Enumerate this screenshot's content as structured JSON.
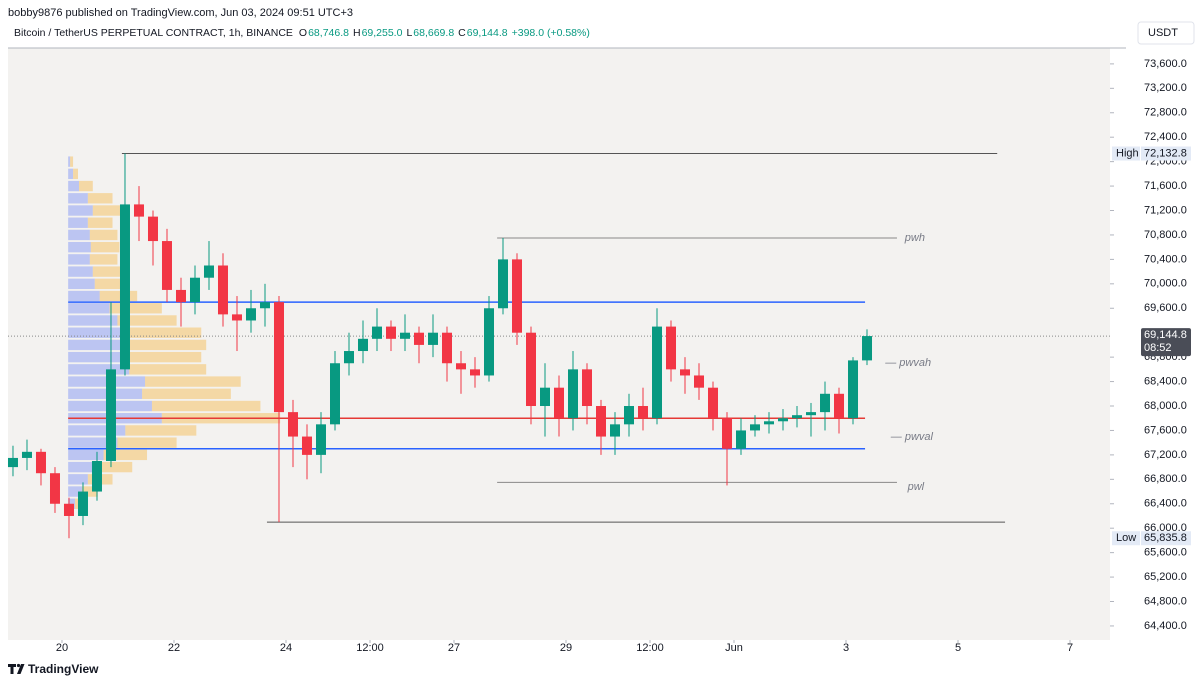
{
  "header": {
    "publisher": "bobby9876 published on TradingView.com, Jun 03, 2024 09:51 UTC+3"
  },
  "footer": {
    "brand": "TradingView"
  },
  "chart_data": {
    "type": "candlestick",
    "title": "Bitcoin / TetherUS PERPETUAL CONTRACT, 1h, BINANCE",
    "legend_ohlc": [
      {
        "key": "O",
        "value": "68,746.8"
      },
      {
        "key": "H",
        "value": "69,255.0"
      },
      {
        "key": "L",
        "value": "68,669.8"
      },
      {
        "key": "C",
        "value": "69,144.8"
      }
    ],
    "change": "+398.0 (+0.58%)",
    "currency": "USDT",
    "up_color": "#089981",
    "down_color": "#f23645",
    "x": [
      -0.875,
      -0.625,
      -0.375,
      -0.125,
      0.125,
      0.375,
      0.625,
      0.875,
      1.125,
      1.375,
      1.625,
      1.875,
      2.125,
      2.375,
      2.625,
      2.875,
      3.125,
      3.375,
      3.625,
      3.875,
      4.125,
      4.375,
      4.625,
      4.875,
      5.125,
      5.375,
      5.625,
      5.875,
      6.125,
      6.375,
      6.625,
      6.875,
      7.125,
      7.375,
      7.625,
      7.875,
      8.125,
      8.375,
      8.625,
      8.875,
      9.125,
      9.375,
      9.625,
      9.875,
      10.125,
      10.375,
      10.625,
      10.875,
      11.125,
      11.375,
      11.625,
      11.875,
      12.125,
      12.375,
      12.625,
      12.875,
      13.125,
      13.375,
      13.625,
      13.875,
      14.125,
      14.375
    ],
    "open": [
      67000,
      67150,
      67250,
      66900,
      66400,
      66200,
      66600,
      67100,
      68600,
      71300,
      71100,
      70700,
      69900,
      69700,
      70100,
      70300,
      69500,
      69400,
      69600,
      69700,
      67900,
      67500,
      67200,
      67700,
      68700,
      68900,
      69100,
      69300,
      69100,
      69200,
      69000,
      69200,
      68700,
      68600,
      68500,
      69600,
      70400,
      69200,
      68000,
      68300,
      67800,
      68600,
      68000,
      67500,
      67700,
      68000,
      67800,
      69300,
      68600,
      68500,
      68300,
      67800,
      67300,
      67600,
      67700,
      67750,
      67800,
      67850,
      67900,
      68200,
      67800,
      68746.8
    ],
    "high": [
      67350,
      67450,
      67300,
      67000,
      66500,
      66750,
      67250,
      69700,
      72132.8,
      71600,
      71200,
      70900,
      70100,
      70300,
      70700,
      70500,
      69800,
      69900,
      70000,
      69800,
      68100,
      67700,
      67900,
      68900,
      69200,
      69400,
      69600,
      69400,
      69500,
      69300,
      69500,
      69300,
      68900,
      68800,
      69800,
      70750,
      70500,
      69300,
      68700,
      68500,
      68900,
      68700,
      68100,
      67900,
      68200,
      68300,
      69600,
      69400,
      68800,
      68700,
      68400,
      67900,
      67800,
      67850,
      67900,
      67950,
      68000,
      68050,
      68400,
      68300,
      68800,
      69255.0
    ],
    "low": [
      66850,
      66950,
      66700,
      66250,
      65835.8,
      66050,
      66450,
      67000,
      68500,
      70700,
      70300,
      69700,
      69300,
      69500,
      69900,
      69300,
      68900,
      69200,
      69300,
      66100,
      67000,
      66800,
      66900,
      67600,
      68500,
      68700,
      68900,
      68900,
      68900,
      68700,
      68800,
      68400,
      68200,
      68300,
      68400,
      69500,
      69000,
      67700,
      67500,
      67500,
      67600,
      67700,
      67200,
      67200,
      67500,
      67600,
      67700,
      68400,
      68200,
      68100,
      67600,
      66700,
      67200,
      67500,
      67550,
      67600,
      67650,
      67500,
      67600,
      67550,
      67700,
      68669.8
    ],
    "close": [
      67150,
      67250,
      66900,
      66400,
      66200,
      66600,
      67100,
      68600,
      71300,
      71100,
      70700,
      69900,
      69700,
      70100,
      70300,
      69500,
      69400,
      69600,
      69700,
      67900,
      67500,
      67200,
      67700,
      68700,
      68900,
      69100,
      69300,
      69100,
      69200,
      69000,
      69200,
      68700,
      68600,
      68500,
      69600,
      70400,
      69200,
      68000,
      68300,
      67800,
      68600,
      68000,
      67500,
      67700,
      68000,
      67800,
      69300,
      68600,
      68500,
      68300,
      67800,
      67300,
      67600,
      67700,
      67750,
      67800,
      67850,
      67900,
      68200,
      67800,
      68746.8,
      69144.8
    ],
    "xlim": [
      -0.964,
      18.714
    ],
    "ylim": [
      64170,
      73860
    ],
    "xticks": [
      {
        "value": 0,
        "label": "20"
      },
      {
        "value": 2,
        "label": "22"
      },
      {
        "value": 4,
        "label": "24"
      },
      {
        "value": 5.5,
        "label": "12:00"
      },
      {
        "value": 7,
        "label": "27"
      },
      {
        "value": 9,
        "label": "29"
      },
      {
        "value": 10.5,
        "label": "12:00"
      },
      {
        "value": 12,
        "label": "Jun"
      },
      {
        "value": 14,
        "label": "3"
      },
      {
        "value": 16,
        "label": "5"
      },
      {
        "value": 18,
        "label": "7"
      }
    ],
    "yticks": [
      {
        "value": 64400,
        "label": "64,400.0"
      },
      {
        "value": 64800,
        "label": "64,800.0"
      },
      {
        "value": 65200,
        "label": "65,200.0"
      },
      {
        "value": 65600,
        "label": "65,600.0"
      },
      {
        "value": 66000,
        "label": "66,000.0"
      },
      {
        "value": 66400,
        "label": "66,400.0"
      },
      {
        "value": 66800,
        "label": "66,800.0"
      },
      {
        "value": 67200,
        "label": "67,200.0"
      },
      {
        "value": 67600,
        "label": "67,600.0"
      },
      {
        "value": 68000,
        "label": "68,000.0"
      },
      {
        "value": 68400,
        "label": "68,400.0"
      },
      {
        "value": 68800,
        "label": "68,800.0"
      },
      {
        "value": 69600,
        "label": "69,600.0"
      },
      {
        "value": 70000,
        "label": "70,000.0"
      },
      {
        "value": 70400,
        "label": "70,400.0"
      },
      {
        "value": 70800,
        "label": "70,800.0"
      },
      {
        "value": 71200,
        "label": "71,200.0"
      },
      {
        "value": 71600,
        "label": "71,600.0"
      },
      {
        "value": 72000,
        "label": "72,000.0"
      },
      {
        "value": 72400,
        "label": "72,400.0"
      },
      {
        "value": 72800,
        "label": "72,800.0"
      },
      {
        "value": 73200,
        "label": "73,200.0"
      },
      {
        "value": 73600,
        "label": "73,600.0"
      }
    ],
    "high_marker": {
      "tag": "High",
      "value": 72132.8,
      "label": "72,132.8"
    },
    "low_marker": {
      "tag": "Low",
      "value": 65835.8,
      "label": "65,835.8"
    },
    "last_price": {
      "value": 69144.8,
      "label": "69,144.8",
      "countdown": "08:52"
    },
    "levels": [
      {
        "value": 72132.8,
        "x0": 1.07,
        "x1": 16.7,
        "color": "#555555"
      },
      {
        "value": 70750,
        "x0": 7.77,
        "x1": 14.91,
        "color": "#888888"
      },
      {
        "value": 69700,
        "x0": 0.11,
        "x1": 14.34,
        "color": "#2962ff"
      },
      {
        "value": 67800,
        "x0": 0.11,
        "x1": 14.34,
        "color": "#e53935"
      },
      {
        "value": 67300,
        "x0": 0.11,
        "x1": 14.34,
        "color": "#2962ff"
      },
      {
        "value": 66750,
        "x0": 7.77,
        "x1": 14.91,
        "color": "#888888"
      },
      {
        "value": 66100,
        "x0": 3.66,
        "x1": 16.84,
        "color": "#555555"
      }
    ],
    "annotations": [
      {
        "text": "pwh",
        "x": 15.05,
        "y": 70750
      },
      {
        "text": "— pwvah",
        "x": 14.7,
        "y": 68704
      },
      {
        "text": "— pwval",
        "x": 14.8,
        "y": 67493
      },
      {
        "text": "pwl",
        "x": 15.1,
        "y": 66674
      }
    ],
    "volume_profile": {
      "x0": 0.11,
      "prices": [
        66400,
        66600,
        66800,
        67000,
        67200,
        67400,
        67600,
        67800,
        68000,
        68200,
        68400,
        68600,
        68800,
        69000,
        69200,
        69400,
        69600,
        69800,
        70000,
        70200,
        70400,
        70600,
        70800,
        71000,
        71200,
        71400,
        71600,
        71800,
        72000
      ],
      "up": [
        7,
        14,
        20,
        30,
        36,
        50,
        58,
        95,
        85,
        75,
        78,
        62,
        60,
        62,
        60,
        50,
        42,
        32,
        27,
        25,
        22,
        23,
        22,
        20,
        25,
        20,
        11,
        5,
        2
      ],
      "down": [
        8,
        16,
        25,
        35,
        44,
        60,
        72,
        120,
        110,
        90,
        97,
        78,
        75,
        78,
        75,
        60,
        53,
        38,
        33,
        30,
        28,
        29,
        28,
        25,
        30,
        25,
        14,
        5,
        3
      ],
      "up_color": "#7b8ff5",
      "down_color": "#f7b84a"
    }
  }
}
